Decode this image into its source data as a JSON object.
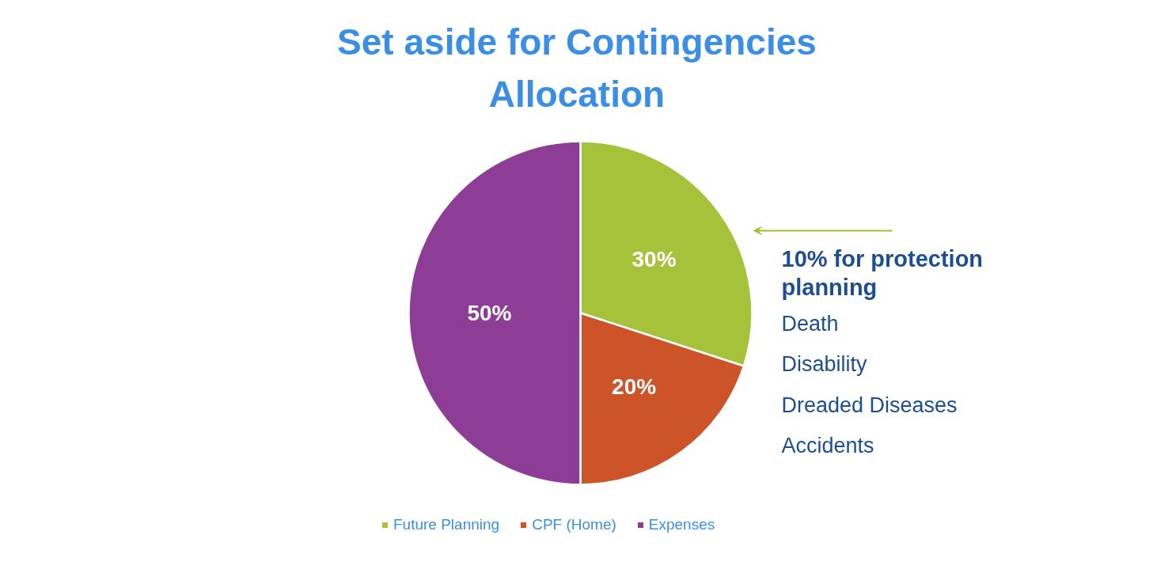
{
  "chart_data": {
    "type": "pie",
    "title": "Set aside for Contingencies\nAllocation",
    "categories": [
      "Future Planning",
      "CPF (Home)",
      "Expenses"
    ],
    "values": [
      30,
      20,
      50
    ],
    "colors": [
      "#a5c23a",
      "#cc5428",
      "#8e3d96"
    ],
    "value_labels": [
      "30%",
      "20%",
      "50%"
    ],
    "legend": "bottom",
    "annotations": [
      "10% for protection planning",
      "Death",
      "Disability",
      "Dreaded Diseases",
      "Accidents"
    ]
  }
}
